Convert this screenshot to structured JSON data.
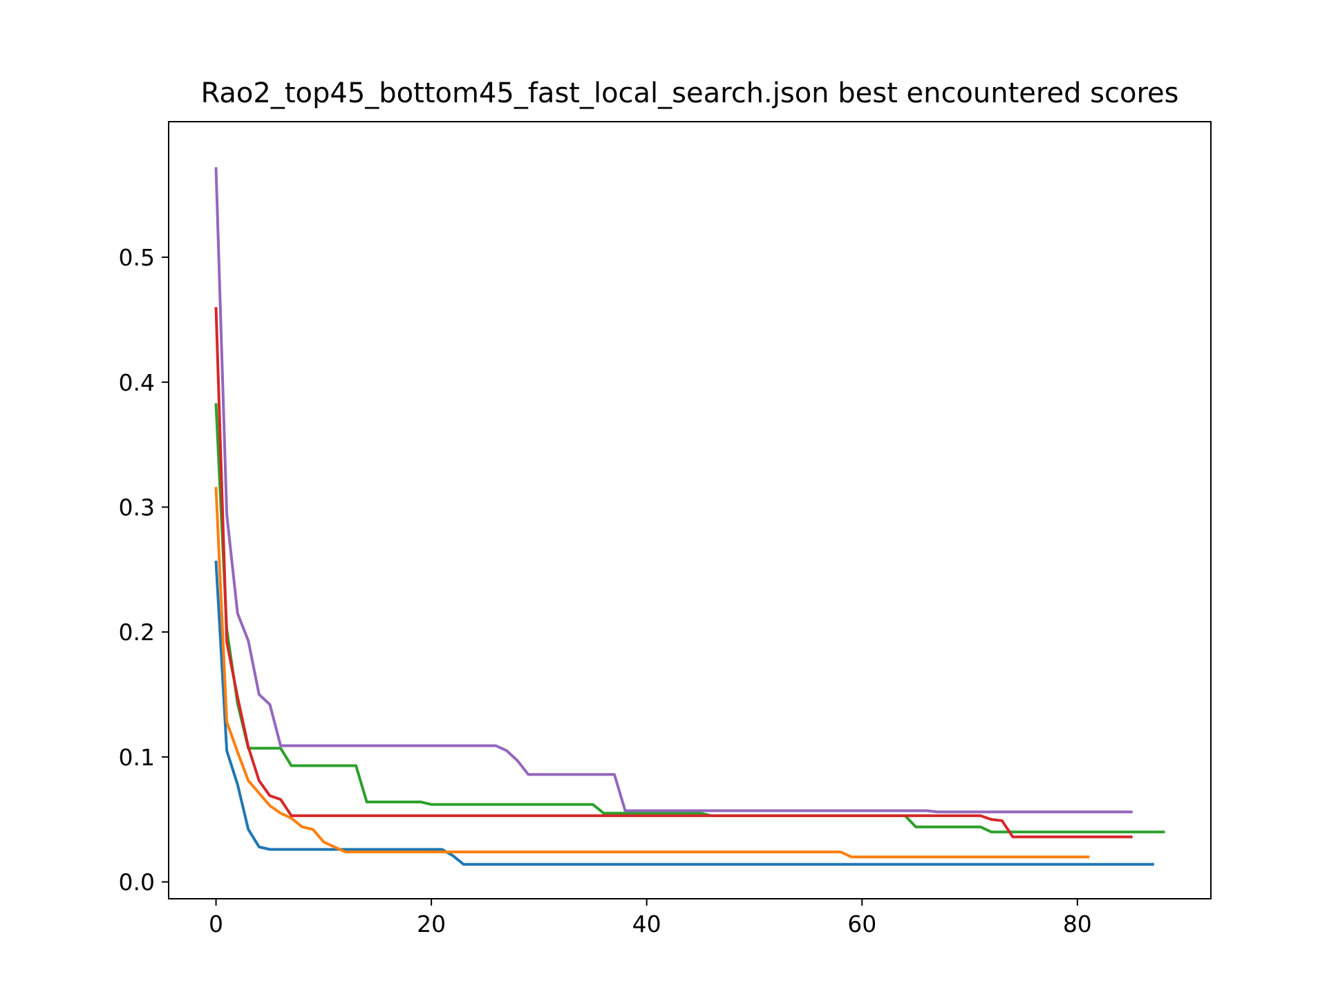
{
  "chart_data": {
    "type": "line",
    "title": "Rao2_top45_bottom45_fast_local_search.json best encountered scores",
    "xlabel": "",
    "ylabel": "",
    "xlim": [
      -4.4,
      92.4
    ],
    "ylim": [
      -0.0135,
      0.6085
    ],
    "xticks": [
      0,
      20,
      40,
      60,
      80
    ],
    "xtick_labels": [
      "0",
      "20",
      "40",
      "60",
      "80"
    ],
    "yticks": [
      0.0,
      0.1,
      0.2,
      0.3,
      0.4,
      0.5
    ],
    "ytick_labels": [
      "0.0",
      "0.1",
      "0.2",
      "0.3",
      "0.4",
      "0.5"
    ],
    "grid": false,
    "legend": "none",
    "series": [
      {
        "color": "#1f77b4",
        "points": [
          [
            0,
            0.256
          ],
          [
            1,
            0.105
          ],
          [
            2,
            0.078
          ],
          [
            3,
            0.042
          ],
          [
            4,
            0.028
          ],
          [
            5,
            0.026
          ],
          [
            21,
            0.026
          ],
          [
            22,
            0.021
          ],
          [
            23,
            0.014
          ],
          [
            87,
            0.014
          ]
        ]
      },
      {
        "color": "#ff7f0e",
        "points": [
          [
            0,
            0.315
          ],
          [
            1,
            0.128
          ],
          [
            2,
            0.104
          ],
          [
            3,
            0.081
          ],
          [
            4,
            0.071
          ],
          [
            5,
            0.061
          ],
          [
            6,
            0.055
          ],
          [
            7,
            0.051
          ],
          [
            8,
            0.044
          ],
          [
            9,
            0.042
          ],
          [
            10,
            0.032
          ],
          [
            11,
            0.028
          ],
          [
            12,
            0.024
          ],
          [
            58,
            0.024
          ],
          [
            59,
            0.02
          ],
          [
            81,
            0.02
          ]
        ]
      },
      {
        "color": "#2ca02c",
        "points": [
          [
            0,
            0.382
          ],
          [
            1,
            0.202
          ],
          [
            2,
            0.143
          ],
          [
            3,
            0.107
          ],
          [
            6,
            0.107
          ],
          [
            7,
            0.093
          ],
          [
            13,
            0.093
          ],
          [
            14,
            0.064
          ],
          [
            19,
            0.064
          ],
          [
            20,
            0.062
          ],
          [
            35,
            0.062
          ],
          [
            36,
            0.055
          ],
          [
            45,
            0.055
          ],
          [
            46,
            0.053
          ],
          [
            64,
            0.053
          ],
          [
            65,
            0.044
          ],
          [
            71,
            0.044
          ],
          [
            72,
            0.04
          ],
          [
            88,
            0.04
          ]
        ]
      },
      {
        "color": "#d62728",
        "points": [
          [
            0,
            0.459
          ],
          [
            1,
            0.192
          ],
          [
            2,
            0.148
          ],
          [
            3,
            0.108
          ],
          [
            4,
            0.081
          ],
          [
            5,
            0.069
          ],
          [
            6,
            0.066
          ],
          [
            7,
            0.053
          ],
          [
            71,
            0.053
          ],
          [
            72,
            0.05
          ],
          [
            73,
            0.049
          ],
          [
            74,
            0.036
          ],
          [
            85,
            0.036
          ]
        ]
      },
      {
        "color": "#9467bd",
        "points": [
          [
            0,
            0.571
          ],
          [
            1,
            0.294
          ],
          [
            2,
            0.215
          ],
          [
            3,
            0.193
          ],
          [
            4,
            0.15
          ],
          [
            5,
            0.142
          ],
          [
            6,
            0.109
          ],
          [
            26,
            0.109
          ],
          [
            27,
            0.105
          ],
          [
            28,
            0.097
          ],
          [
            29,
            0.086
          ],
          [
            37,
            0.086
          ],
          [
            38,
            0.057
          ],
          [
            66,
            0.057
          ],
          [
            67,
            0.056
          ],
          [
            85,
            0.056
          ]
        ]
      }
    ]
  }
}
